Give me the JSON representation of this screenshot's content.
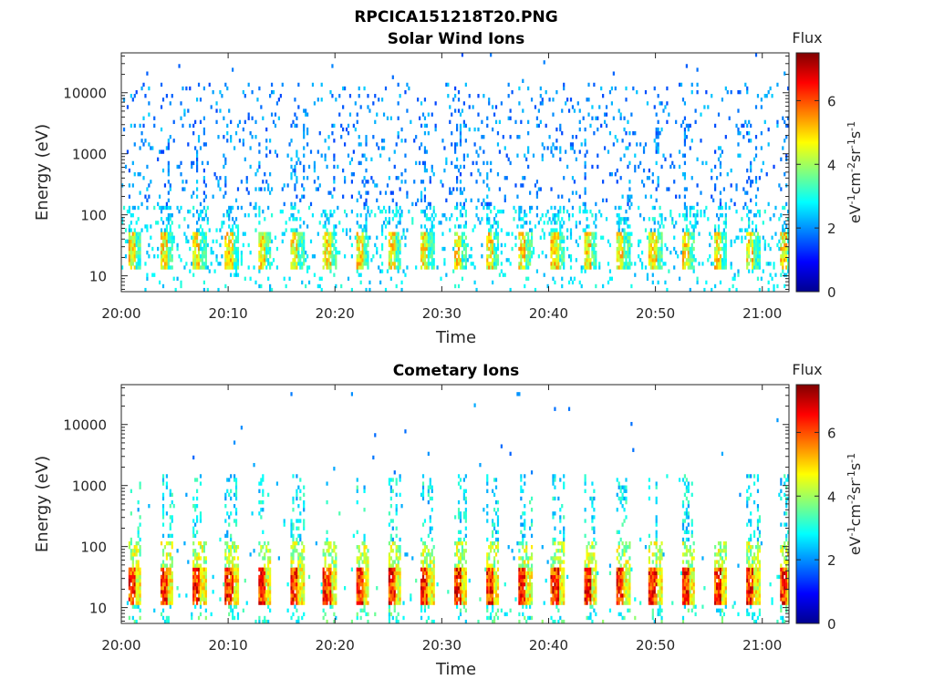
{
  "figure": {
    "title": "RPCICA151218T20.PNG"
  },
  "colormap": "jet",
  "chart_data": [
    {
      "type": "heatmap",
      "title": "Solar Wind Ions",
      "xlabel": "Time",
      "ylabel": "Energy (eV)",
      "x_ticks": [
        "20:00",
        "20:10",
        "20:20",
        "20:30",
        "20:40",
        "20:50",
        "21:00"
      ],
      "x_tick_minutes": [
        0,
        10,
        20,
        30,
        40,
        50,
        60
      ],
      "xlim_minutes": [
        0,
        62.5
      ],
      "y_scale": "log",
      "ylim": [
        5.5,
        45000
      ],
      "y_ticks": [
        "10",
        "100",
        "1000",
        "10000"
      ],
      "y_tick_values": [
        10,
        100,
        1000,
        10000
      ],
      "colorbar": {
        "label": "Flux",
        "unit": "eV-1cm-2sr-1s-1",
        "range": [
          0,
          7.5
        ],
        "ticks": [
          0,
          2,
          4,
          6
        ]
      },
      "description_of_values": "Sparse low flux (about 1.5-3) scattered between 100 eV and 15 keV; periodic bursts near 20-40 eV with flux up to about 5.5, roughly every 3 minutes."
    },
    {
      "type": "heatmap",
      "title": "Cometary Ions",
      "xlabel": "Time",
      "ylabel": "Energy (eV)",
      "x_ticks": [
        "20:00",
        "20:10",
        "20:20",
        "20:30",
        "20:40",
        "20:50",
        "21:00"
      ],
      "x_tick_minutes": [
        0,
        10,
        20,
        30,
        40,
        50,
        60
      ],
      "xlim_minutes": [
        0,
        62.5
      ],
      "y_scale": "log",
      "ylim": [
        5.5,
        45000
      ],
      "y_ticks": [
        "10",
        "100",
        "1000",
        "10000"
      ],
      "y_tick_values": [
        10,
        100,
        1000,
        10000
      ],
      "colorbar": {
        "label": "Flux",
        "unit": "eV-1cm-2sr-1s-1",
        "range": [
          0,
          7.5
        ],
        "ticks": [
          0,
          2,
          4,
          6
        ]
      },
      "description_of_values": "Strong periodic bursts (flux up to about 7) centred near 15-45 eV roughly every 3 minutes, with fainter vertical plumes reaching 100-1000 eV and rare points up to 30 keV."
    }
  ]
}
